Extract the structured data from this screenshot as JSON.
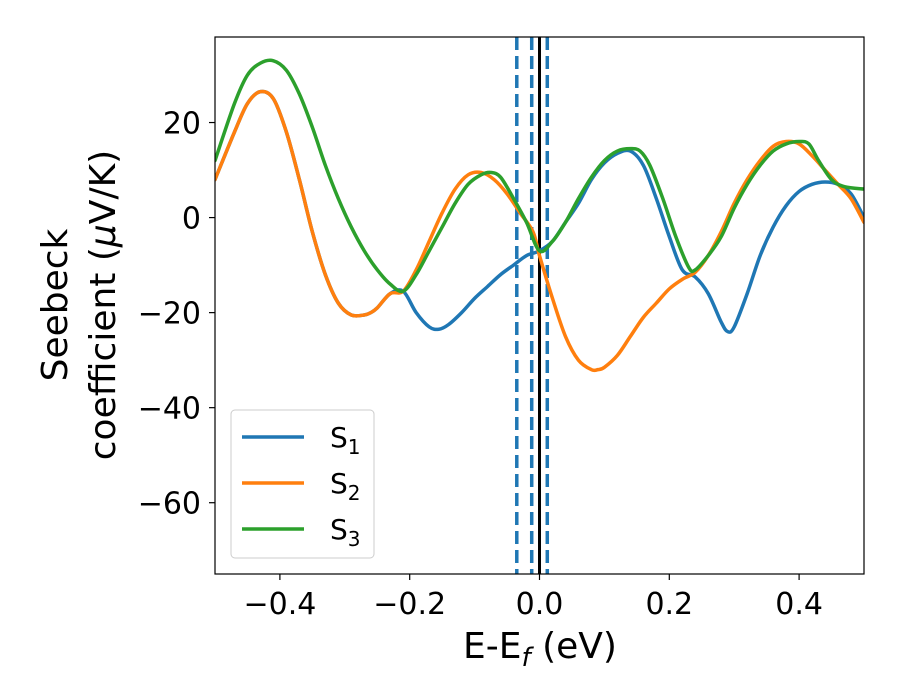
{
  "chart_data": {
    "type": "line",
    "xlabel": {
      "main": "E-E",
      "sub": "f",
      "suffix": " (eV)"
    },
    "ylabel": {
      "line1": "Seebeck",
      "line2": "coefficient  (",
      "mu": "μ",
      "line2_end": "V/K)"
    },
    "xlim": [
      -0.5,
      0.5
    ],
    "ylim": [
      -75,
      38
    ],
    "xticks": [
      -0.4,
      -0.2,
      0.0,
      0.2,
      0.4
    ],
    "xtick_labels": [
      "−0.4",
      "−0.2",
      "0.0",
      "0.2",
      "0.4"
    ],
    "yticks": [
      20,
      0,
      -20,
      -40,
      -60
    ],
    "ytick_labels": [
      "20",
      "0",
      "−20",
      "−40",
      "−60"
    ],
    "grid": false,
    "legend_position": "lower-left",
    "vlines": [
      {
        "x": -0.035,
        "style": "dashed",
        "color": "#1f77b4"
      },
      {
        "x": -0.012,
        "style": "dashed",
        "color": "#1f77b4"
      },
      {
        "x": 0.012,
        "style": "dashed",
        "color": "#1f77b4"
      },
      {
        "x": 0.0,
        "style": "solid",
        "color": "#000000"
      }
    ],
    "series": [
      {
        "name": "S",
        "sub": "1",
        "color": "#1f77b4",
        "x": [
          -0.5,
          -0.47,
          -0.45,
          -0.43,
          -0.41,
          -0.39,
          -0.37,
          -0.35,
          -0.33,
          -0.31,
          -0.29,
          -0.27,
          -0.26,
          -0.25,
          -0.23,
          -0.21,
          -0.19,
          -0.17,
          -0.155,
          -0.14,
          -0.12,
          -0.1,
          -0.08,
          -0.06,
          -0.04,
          -0.02,
          0.0,
          0.02,
          0.04,
          0.06,
          0.08,
          0.1,
          0.12,
          0.14,
          0.16,
          0.18,
          0.2,
          0.22,
          0.24,
          0.26,
          0.28,
          0.29,
          0.3,
          0.32,
          0.34,
          0.36,
          0.38,
          0.4,
          0.42,
          0.44,
          0.46,
          0.48,
          0.5
        ],
        "y": [
          8,
          18,
          24,
          26.5,
          25,
          18,
          8,
          -3,
          -12,
          -18,
          -20.5,
          -20.5,
          -20,
          -19,
          -16,
          -15.5,
          -20,
          -23,
          -23.5,
          -22.5,
          -20,
          -17,
          -14.5,
          -12,
          -10,
          -8,
          -7,
          -5,
          -1,
          3,
          8,
          11.5,
          13.5,
          14,
          11,
          4,
          -4,
          -11,
          -12.5,
          -16,
          -22,
          -24,
          -23,
          -16,
          -8,
          -2,
          2.5,
          5.5,
          7,
          7.5,
          7,
          5,
          0
        ]
      },
      {
        "name": "S",
        "sub": "2",
        "color": "#ff7f0e",
        "x": [
          -0.5,
          -0.47,
          -0.45,
          -0.43,
          -0.41,
          -0.39,
          -0.37,
          -0.35,
          -0.33,
          -0.31,
          -0.29,
          -0.27,
          -0.26,
          -0.25,
          -0.23,
          -0.21,
          -0.19,
          -0.17,
          -0.15,
          -0.13,
          -0.11,
          -0.09,
          -0.07,
          -0.05,
          -0.03,
          -0.01,
          0.0,
          0.02,
          0.04,
          0.06,
          0.08,
          0.09,
          0.1,
          0.12,
          0.14,
          0.16,
          0.18,
          0.2,
          0.22,
          0.24,
          0.26,
          0.28,
          0.3,
          0.32,
          0.34,
          0.36,
          0.38,
          0.4,
          0.42,
          0.44,
          0.46,
          0.48,
          0.5
        ],
        "y": [
          8,
          18,
          24,
          26.5,
          25,
          18,
          8,
          -3,
          -12,
          -18,
          -20.5,
          -20.5,
          -20,
          -19,
          -16,
          -15.5,
          -11,
          -5,
          1,
          6,
          9,
          9.5,
          8,
          5,
          1,
          -3,
          -8,
          -17,
          -25,
          -30,
          -32,
          -32,
          -31.5,
          -29,
          -25,
          -21,
          -18,
          -15,
          -13,
          -11.5,
          -8,
          -3,
          3,
          8,
          12,
          15,
          16,
          15.5,
          13,
          10,
          7,
          4,
          -1
        ]
      },
      {
        "name": "S",
        "sub": "3",
        "color": "#2ca02c",
        "x": [
          -0.5,
          -0.47,
          -0.45,
          -0.43,
          -0.41,
          -0.39,
          -0.37,
          -0.35,
          -0.33,
          -0.31,
          -0.29,
          -0.27,
          -0.25,
          -0.23,
          -0.21,
          -0.19,
          -0.17,
          -0.15,
          -0.13,
          -0.11,
          -0.09,
          -0.075,
          -0.06,
          -0.04,
          -0.02,
          0.0,
          0.02,
          0.04,
          0.06,
          0.08,
          0.1,
          0.12,
          0.14,
          0.155,
          0.17,
          0.19,
          0.21,
          0.23,
          0.24,
          0.26,
          0.28,
          0.3,
          0.32,
          0.34,
          0.36,
          0.38,
          0.4,
          0.415,
          0.43,
          0.45,
          0.47,
          0.5
        ],
        "y": [
          12,
          24,
          30,
          32.5,
          33,
          31,
          26,
          19,
          11,
          4,
          -2,
          -7,
          -11,
          -14,
          -15.5,
          -12,
          -7,
          -2,
          3,
          7,
          9,
          9.5,
          8.5,
          4,
          -1,
          -7,
          -5,
          -1,
          4,
          8.5,
          12,
          14,
          14.5,
          14,
          11,
          4,
          -4,
          -10.5,
          -11,
          -8,
          -4,
          2,
          7,
          11,
          14,
          15.5,
          16,
          15.5,
          12,
          8,
          6.5,
          6
        ]
      }
    ]
  }
}
